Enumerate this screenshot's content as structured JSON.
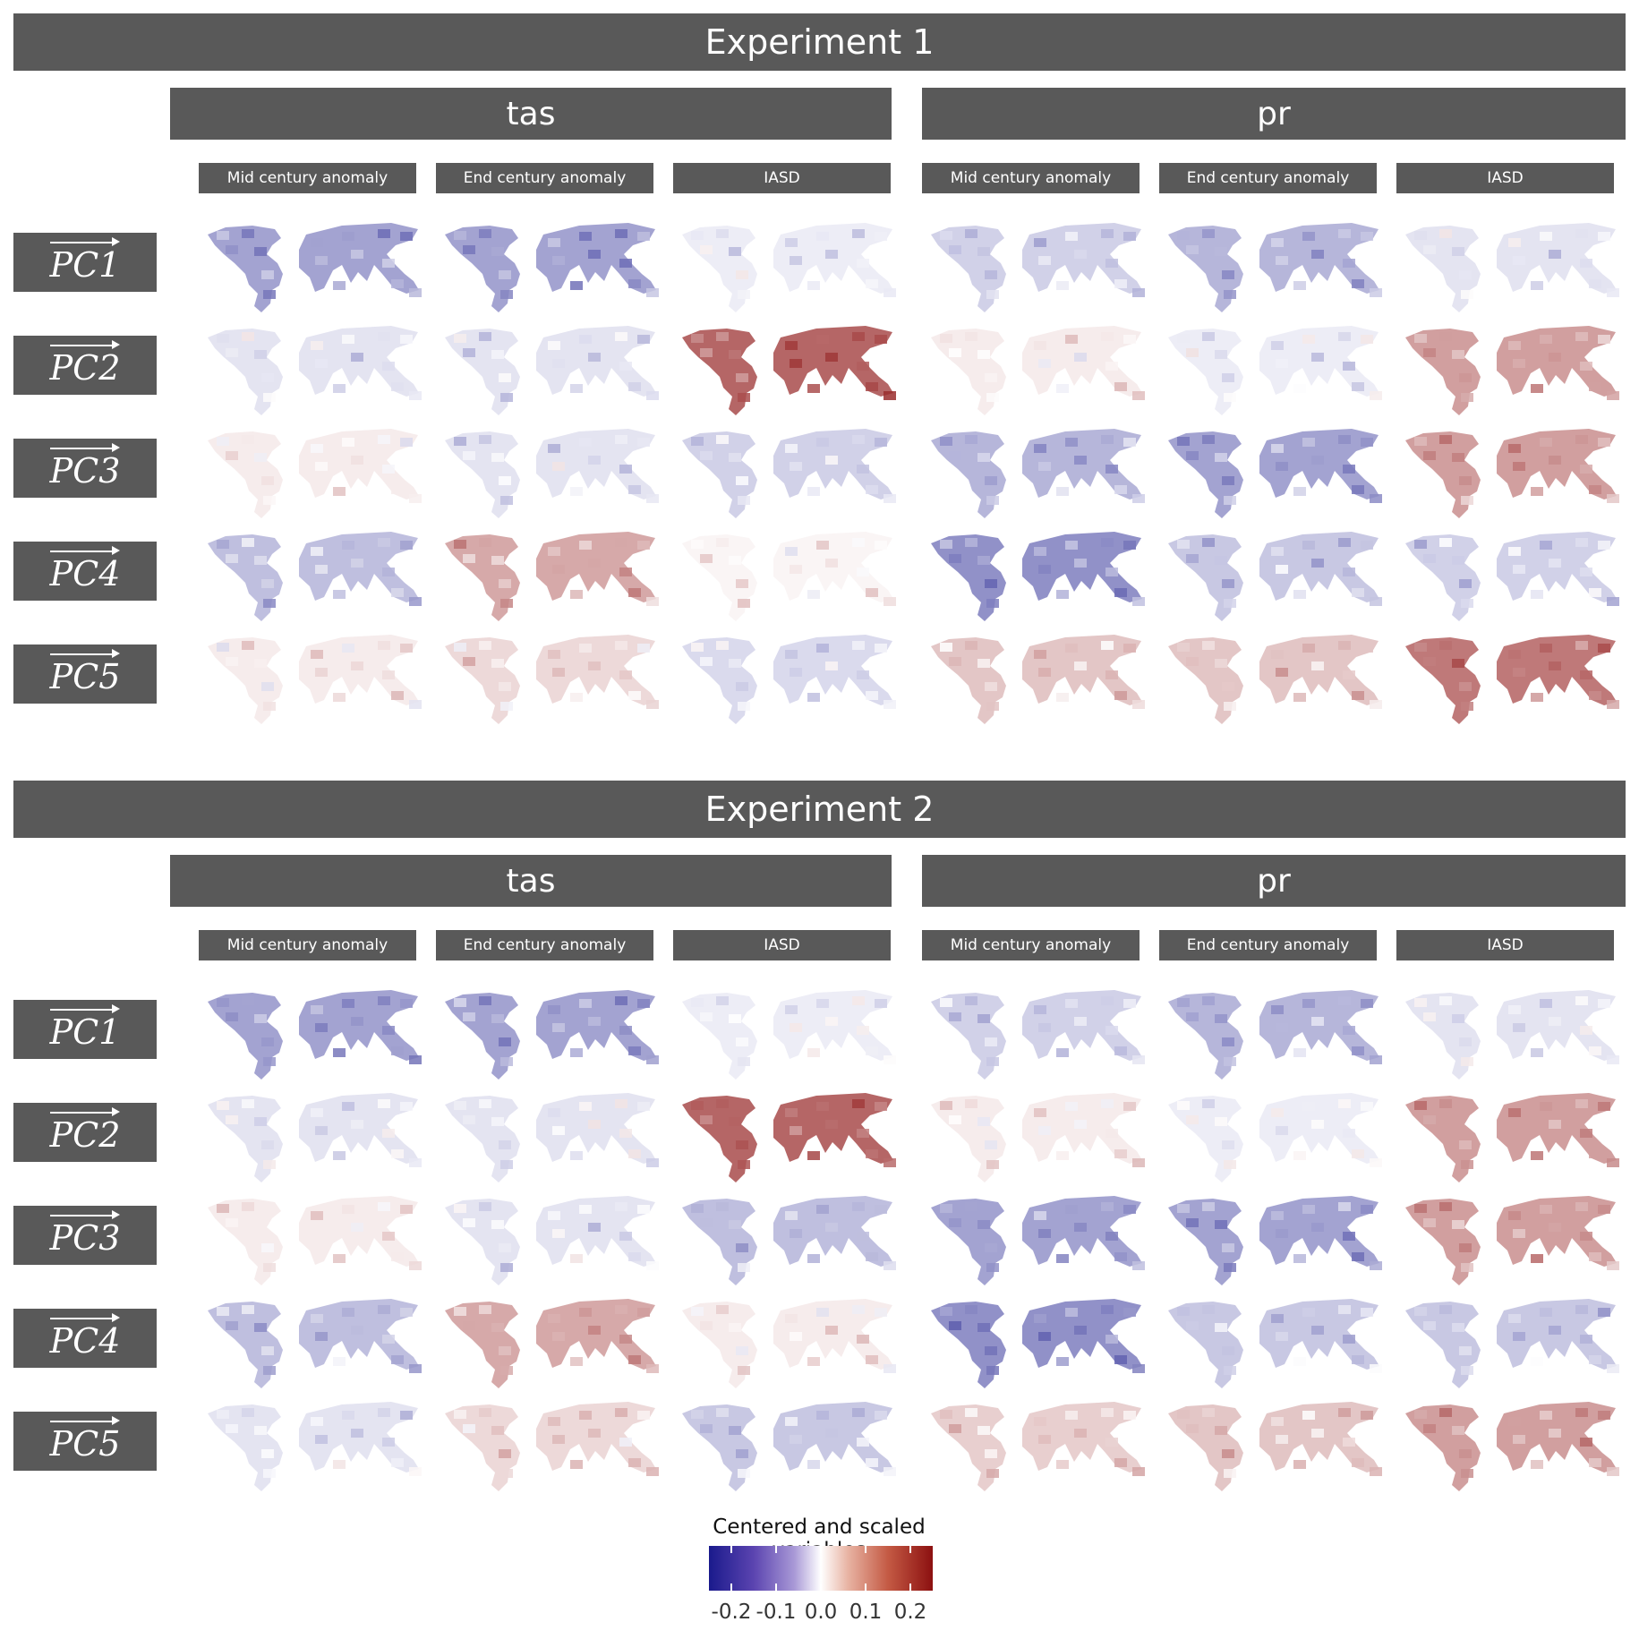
{
  "chart_data": {
    "type": "heatmap",
    "title": "Centered and scaled variables",
    "legend": {
      "title": "Centered and scaled variables",
      "ticks": [
        "-0.2",
        "-0.1",
        "0.0",
        "0.1",
        "0.2"
      ],
      "range": [
        -0.25,
        0.25
      ],
      "low_color": "#1a1a8c",
      "mid_color": "#ffffff",
      "high_color": "#8c1010"
    },
    "variables": [
      "tas",
      "pr"
    ],
    "metrics": [
      "Mid century anomaly",
      "End century anomaly",
      "IASD"
    ],
    "components": [
      "PC1",
      "PC2",
      "PC3",
      "PC4",
      "PC5"
    ],
    "experiments": [
      {
        "name": "Experiment 1",
        "loadings": [
          [
            -0.1,
            -0.1,
            -0.02,
            -0.05,
            -0.08,
            -0.03
          ],
          [
            -0.03,
            -0.03,
            0.16,
            0.02,
            -0.02,
            0.1
          ],
          [
            0.02,
            -0.03,
            -0.05,
            -0.08,
            -0.1,
            0.1
          ],
          [
            -0.07,
            0.09,
            0.01,
            -0.12,
            -0.06,
            -0.05
          ],
          [
            0.02,
            0.04,
            -0.04,
            0.06,
            0.06,
            0.14
          ]
        ]
      },
      {
        "name": "Experiment 2",
        "loadings": [
          [
            -0.1,
            -0.1,
            -0.02,
            -0.05,
            -0.08,
            -0.03
          ],
          [
            -0.03,
            -0.03,
            0.16,
            0.02,
            -0.02,
            0.1
          ],
          [
            0.02,
            -0.03,
            -0.07,
            -0.1,
            -0.1,
            0.1
          ],
          [
            -0.07,
            0.09,
            0.02,
            -0.12,
            -0.06,
            -0.06
          ],
          [
            -0.03,
            0.04,
            -0.06,
            0.05,
            0.06,
            0.1
          ]
        ]
      }
    ]
  }
}
